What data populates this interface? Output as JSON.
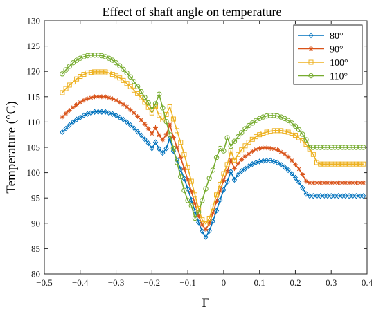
{
  "chart_data": {
    "type": "line",
    "title": "Effect of shaft angle on temperature",
    "xlabel": "Γ",
    "ylabel": "Temperature (°C)",
    "xlim": [
      -0.5,
      0.4
    ],
    "ylim": [
      80,
      130
    ],
    "xticks": [
      -0.5,
      -0.4,
      -0.3,
      -0.2,
      -0.1,
      0,
      0.1,
      0.2,
      0.3,
      0.4
    ],
    "xtick_labels": [
      "−0.5",
      "−0.4",
      "−0.3",
      "−0.2",
      "−0.1",
      "0",
      "0.1",
      "0.2",
      "0.3",
      "0.4"
    ],
    "yticks": [
      80,
      85,
      90,
      95,
      100,
      105,
      110,
      115,
      120,
      125,
      130
    ],
    "grid": false,
    "legend_position": "top-right",
    "x": [
      -0.45,
      -0.44,
      -0.43,
      -0.42,
      -0.41,
      -0.4,
      -0.39,
      -0.38,
      -0.37,
      -0.36,
      -0.35,
      -0.34,
      -0.33,
      -0.32,
      -0.31,
      -0.3,
      -0.29,
      -0.28,
      -0.27,
      -0.26,
      -0.25,
      -0.24,
      -0.23,
      -0.22,
      -0.21,
      -0.2,
      -0.19,
      -0.18,
      -0.17,
      -0.16,
      -0.15,
      -0.14,
      -0.13,
      -0.12,
      -0.11,
      -0.1,
      -0.09,
      -0.08,
      -0.07,
      -0.06,
      -0.05,
      -0.04,
      -0.03,
      -0.02,
      -0.01,
      0.0,
      0.01,
      0.02,
      0.03,
      0.04,
      0.05,
      0.06,
      0.07,
      0.08,
      0.09,
      0.1,
      0.11,
      0.12,
      0.13,
      0.14,
      0.15,
      0.16,
      0.17,
      0.18,
      0.19,
      0.2,
      0.21,
      0.22,
      0.23,
      0.24,
      0.25,
      0.26,
      0.27,
      0.28,
      0.29,
      0.3,
      0.31,
      0.32,
      0.33,
      0.34,
      0.35,
      0.36,
      0.37,
      0.38,
      0.39
    ],
    "series": [
      {
        "name": "80°",
        "color": "#0072BD",
        "marker": "diamond",
        "values": [
          108.0,
          108.7,
          109.4,
          110.0,
          110.5,
          110.9,
          111.3,
          111.6,
          111.8,
          112.0,
          112.0,
          112.0,
          112.0,
          111.8,
          111.6,
          111.3,
          110.9,
          110.5,
          110.0,
          109.4,
          108.8,
          108.1,
          107.4,
          106.6,
          105.8,
          104.8,
          106.0,
          104.7,
          103.9,
          104.8,
          106.8,
          104.3,
          102.5,
          100.7,
          98.8,
          96.8,
          94.6,
          92.4,
          90.2,
          88.4,
          87.3,
          88.5,
          90.4,
          92.5,
          94.6,
          96.6,
          98.2,
          100.2,
          98.6,
          99.6,
          100.3,
          100.8,
          101.3,
          101.7,
          102.0,
          102.2,
          102.3,
          102.4,
          102.4,
          102.2,
          102.0,
          101.6,
          101.1,
          100.5,
          99.8,
          99.0,
          98.1,
          97.0,
          95.8,
          95.4,
          95.4,
          95.4,
          95.4,
          95.4,
          95.4,
          95.4,
          95.4,
          95.4,
          95.4,
          95.4,
          95.4,
          95.4,
          95.4,
          95.4,
          95.4
        ]
      },
      {
        "name": "90°",
        "color": "#D95319",
        "marker": "asterisk",
        "values": [
          111.0,
          111.7,
          112.3,
          112.9,
          113.4,
          113.9,
          114.3,
          114.6,
          114.8,
          115.0,
          115.0,
          115.0,
          115.0,
          114.8,
          114.6,
          114.3,
          113.9,
          113.5,
          113.0,
          112.4,
          111.8,
          111.1,
          110.4,
          109.6,
          108.7,
          107.7,
          108.9,
          107.4,
          106.5,
          107.5,
          109.5,
          107.0,
          105.0,
          103.0,
          100.8,
          98.6,
          96.3,
          93.9,
          91.5,
          89.7,
          88.8,
          90.0,
          92.0,
          94.3,
          96.4,
          98.5,
          100.2,
          102.5,
          100.8,
          101.8,
          102.6,
          103.2,
          103.7,
          104.2,
          104.6,
          104.8,
          104.9,
          104.9,
          104.8,
          104.7,
          104.5,
          104.1,
          103.7,
          103.1,
          102.4,
          101.6,
          100.7,
          99.6,
          98.3,
          98.0,
          98.0,
          98.0,
          98.0,
          98.0,
          98.0,
          98.0,
          98.0,
          98.0,
          98.0,
          98.0,
          98.0,
          98.0,
          98.0,
          98.0,
          98.0
        ]
      },
      {
        "name": "100°",
        "color": "#EDB120",
        "marker": "square",
        "values": [
          115.8,
          116.6,
          117.3,
          117.9,
          118.5,
          119.0,
          119.4,
          119.7,
          119.8,
          119.9,
          119.9,
          119.9,
          119.9,
          119.7,
          119.4,
          119.1,
          118.7,
          118.2,
          117.6,
          117.0,
          116.3,
          115.6,
          114.8,
          113.9,
          112.9,
          111.8,
          113.0,
          111.3,
          110.4,
          111.5,
          113.0,
          110.6,
          108.3,
          106.0,
          103.6,
          101.0,
          98.3,
          95.6,
          92.9,
          90.7,
          89.9,
          91.0,
          93.2,
          95.6,
          97.7,
          99.8,
          101.6,
          104.3,
          102.5,
          103.6,
          104.5,
          105.3,
          106.0,
          106.6,
          107.1,
          107.5,
          107.8,
          108.0,
          108.2,
          108.3,
          108.3,
          108.3,
          108.2,
          108.0,
          107.8,
          107.4,
          106.9,
          106.3,
          105.6,
          104.7,
          103.6,
          102.0,
          101.7,
          101.7,
          101.7,
          101.7,
          101.7,
          101.7,
          101.7,
          101.7,
          101.7,
          101.7,
          101.7,
          101.7,
          101.7
        ]
      },
      {
        "name": "110°",
        "color": "#77AC30",
        "marker": "circle",
        "values": [
          119.5,
          120.3,
          121.0,
          121.7,
          122.2,
          122.6,
          122.9,
          123.1,
          123.2,
          123.2,
          123.2,
          123.1,
          122.9,
          122.6,
          122.2,
          121.7,
          121.1,
          120.4,
          119.7,
          118.9,
          118.0,
          117.0,
          116.0,
          114.9,
          113.8,
          112.5,
          113.6,
          115.5,
          112.8,
          110.1,
          107.5,
          104.8,
          102.0,
          99.2,
          96.5,
          94.5,
          93.5,
          91.0,
          92.2,
          94.5,
          96.8,
          98.9,
          100.5,
          103.0,
          104.8,
          104.3,
          106.9,
          105.2,
          106.2,
          107.1,
          107.9,
          108.7,
          109.3,
          109.8,
          110.3,
          110.7,
          111.0,
          111.2,
          111.3,
          111.3,
          111.2,
          111.0,
          110.7,
          110.3,
          109.8,
          109.2,
          108.5,
          107.6,
          106.5,
          105.0,
          105.0,
          105.0,
          105.0,
          105.0,
          105.0,
          105.0,
          105.0,
          105.0,
          105.0,
          105.0,
          105.0,
          105.0,
          105.0,
          105.0,
          105.0
        ]
      }
    ]
  }
}
